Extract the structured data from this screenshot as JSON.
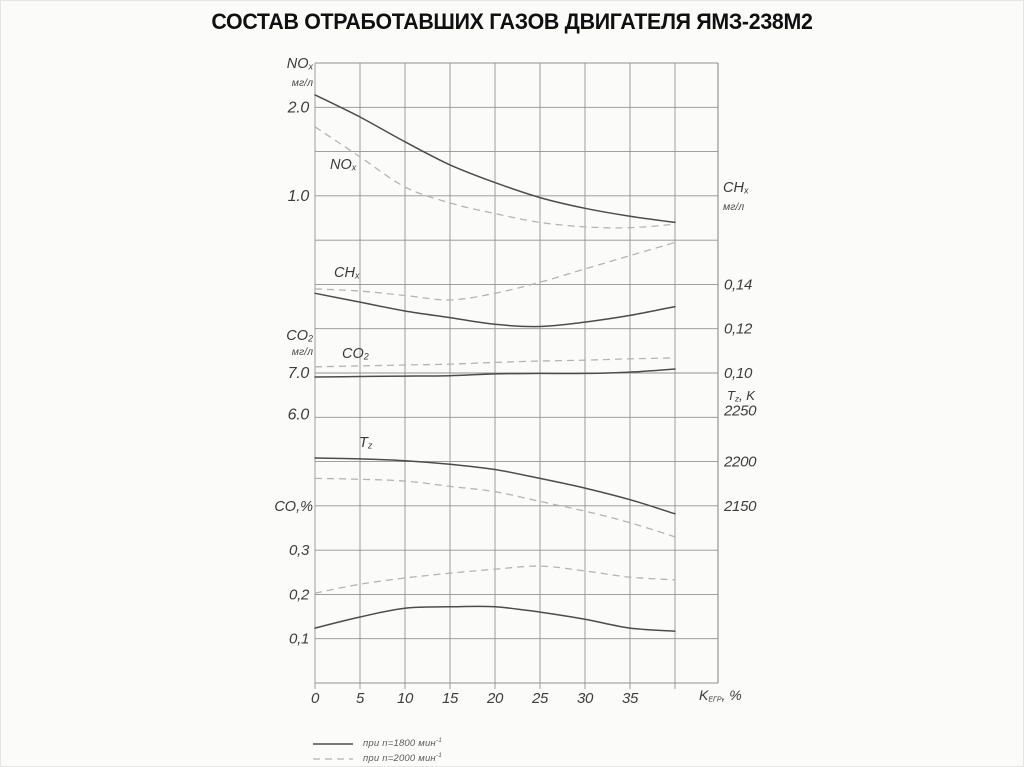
{
  "page": {
    "title": "СОСТАВ ОТРАБОТАВШИХ ГАЗОВ ДВИГАТЕЛЯ ЯМЗ-238М2"
  },
  "axis_labels": {
    "nox": {
      "main": "NO",
      "sub": "x",
      "unit": "мг/л"
    },
    "co2": {
      "main": "CO",
      "sub": "2",
      "unit": "мг/л"
    },
    "co": {
      "text": "CO,%"
    },
    "chx": {
      "main": "CH",
      "sub": "x",
      "unit": "мг/л"
    },
    "tz": {
      "main": "T",
      "sub": "z",
      "rest": ", K"
    }
  },
  "curve_labels": {
    "nox": {
      "main": "NO",
      "sub": "x"
    },
    "chx": {
      "main": "CH",
      "sub": "x"
    },
    "co2": {
      "main": "CO",
      "sub": "2"
    },
    "tz": {
      "main": "T",
      "sub": "z"
    }
  },
  "legend": [
    {
      "line_style": "solid",
      "label": "при n=1800 мин",
      "sup": "-1"
    },
    {
      "line_style": "dashed",
      "label": "при n=2000 мин",
      "sup": "-1"
    }
  ],
  "chart_data": {
    "type": "line",
    "title": "СОСТАВ ОТРАБОТАВШИХ ГАЗОВ ДВИГАТЕЛЯ ЯМЗ-238М2",
    "xlabel": {
      "main": "K",
      "sub": "ЕГР",
      "rest": ", %"
    },
    "x_range": [
      0,
      40
    ],
    "grid": true,
    "legend_position": "bottom-left",
    "x": [
      0,
      5,
      10,
      15,
      20,
      25,
      30,
      35,
      40
    ],
    "x_tick_labels": [
      "0",
      "5",
      "10",
      "15",
      "20",
      "25",
      "30",
      "35"
    ],
    "y_ticks": [
      {
        "label": "2.0",
        "row": 1,
        "side": "left",
        "big": true
      },
      {
        "label": "1.0",
        "row": 3,
        "side": "left",
        "big": true
      },
      {
        "label": "7.0",
        "row": 7,
        "side": "left",
        "big": true
      },
      {
        "label": "6.0",
        "row": 8,
        "side": "left",
        "big": true,
        "dy": -3
      },
      {
        "label": "0,3",
        "row": 11,
        "side": "left"
      },
      {
        "label": "0,2",
        "row": 12,
        "side": "left"
      },
      {
        "label": "0,1",
        "row": 13,
        "side": "left"
      },
      {
        "label": "0,14",
        "row": 5,
        "side": "right"
      },
      {
        "label": "0,12",
        "row": 6,
        "side": "right"
      },
      {
        "label": "0,10",
        "row": 7,
        "side": "right"
      },
      {
        "label": "2250",
        "row": 8,
        "side": "right",
        "dy": -7
      },
      {
        "label": "2200",
        "row": 9,
        "side": "right"
      },
      {
        "label": "2150",
        "row": 10,
        "side": "right"
      }
    ],
    "axes": {
      "NOx": {
        "unit": "мг/л",
        "ticks": [
          {
            "v": 2.0,
            "row": 1
          },
          {
            "v": 1.0,
            "row": 3
          }
        ]
      },
      "CHx": {
        "unit": "мг/л",
        "ticks": [
          {
            "v": 0.14,
            "row": 5
          },
          {
            "v": 0.1,
            "row": 7
          }
        ]
      },
      "CO2": {
        "unit": "мг/л",
        "ticks": [
          {
            "v": 7.0,
            "row": 7
          },
          {
            "v": 6.0,
            "row": 8
          }
        ]
      },
      "Tz": {
        "unit": "K",
        "ticks": [
          {
            "v": 2250,
            "row": 8
          },
          {
            "v": 2150,
            "row": 10
          }
        ]
      },
      "CO": {
        "unit": "%",
        "ticks": [
          {
            "v": 0.3,
            "row": 11
          },
          {
            "v": 0.1,
            "row": 13
          }
        ]
      }
    },
    "series": [
      {
        "id": "nox-1800",
        "group": "NOx",
        "name": "NOx при n=1800 мин⁻¹",
        "dash": false,
        "values": [
          2.14,
          1.89,
          1.61,
          1.35,
          1.15,
          0.98,
          0.86,
          0.77,
          0.7
        ]
      },
      {
        "id": "nox-2000",
        "group": "NOx",
        "name": "NOx при n=2000 мин⁻¹",
        "dash": true,
        "values": [
          1.78,
          1.44,
          1.1,
          0.92,
          0.8,
          0.7,
          0.65,
          0.64,
          0.68
        ]
      },
      {
        "id": "chx-1800",
        "group": "CHx",
        "name": "CHx при n=1800 мин⁻¹",
        "dash": false,
        "values": [
          0.136,
          0.132,
          0.128,
          0.125,
          0.122,
          0.121,
          0.123,
          0.126,
          0.13
        ]
      },
      {
        "id": "chx-2000",
        "group": "CHx",
        "name": "CHx при n=2000 мин⁻¹",
        "dash": true,
        "values": [
          0.138,
          0.137,
          0.135,
          0.133,
          0.136,
          0.141,
          0.147,
          0.153,
          0.159
        ]
      },
      {
        "id": "co2-1800",
        "group": "CO2",
        "name": "CO2 при n=1800 мин⁻¹",
        "dash": false,
        "values": [
          6.91,
          6.92,
          6.93,
          6.94,
          6.98,
          6.99,
          6.99,
          7.02,
          7.09
        ]
      },
      {
        "id": "co2-2000",
        "group": "CO2",
        "name": "CO2 при n=2000 мин⁻¹",
        "dash": true,
        "values": [
          7.14,
          7.16,
          7.18,
          7.2,
          7.24,
          7.27,
          7.29,
          7.32,
          7.34
        ]
      },
      {
        "id": "tz-1800",
        "group": "Tz",
        "name": "Tz при n=1800 мин⁻¹",
        "dash": false,
        "values": [
          2204,
          2203,
          2201,
          2197,
          2191,
          2181,
          2170,
          2157,
          2141
        ]
      },
      {
        "id": "tz-2000",
        "group": "Tz",
        "name": "Tz при n=2000 мин⁻¹",
        "dash": true,
        "values": [
          2181,
          2180,
          2178,
          2172,
          2166,
          2155,
          2144,
          2131,
          2115
        ]
      },
      {
        "id": "co-1800",
        "group": "CO",
        "name": "CO при n=1800 мин⁻¹",
        "dash": false,
        "values": [
          0.124,
          0.149,
          0.169,
          0.172,
          0.172,
          0.16,
          0.144,
          0.124,
          0.117
        ]
      },
      {
        "id": "co-2000",
        "group": "CO",
        "name": "CO при n=2000 мин⁻¹",
        "dash": true,
        "values": [
          0.203,
          0.223,
          0.237,
          0.248,
          0.257,
          0.264,
          0.253,
          0.239,
          0.233
        ]
      }
    ]
  }
}
